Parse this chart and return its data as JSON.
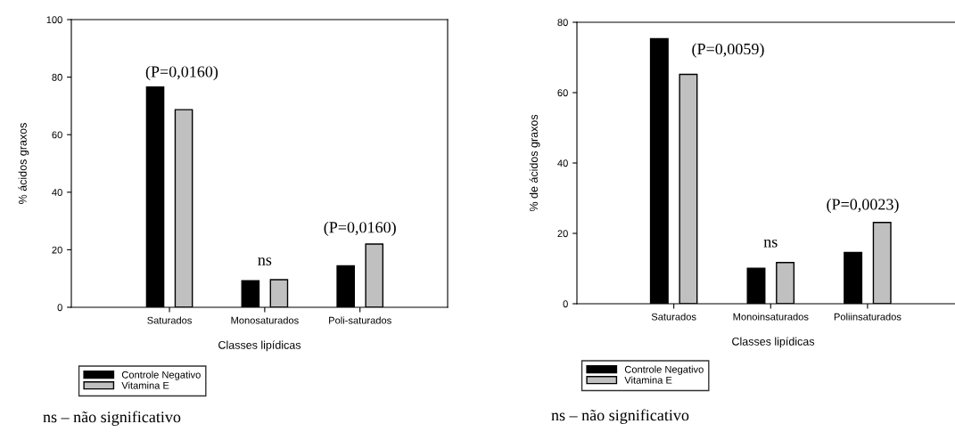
{
  "chart_data": [
    {
      "type": "bar",
      "xlabel": "Classes lipídicas",
      "ylabel": "% ácidos graxos",
      "categories": [
        "Saturados",
        "Monosaturados",
        "Poli-saturados"
      ],
      "series": [
        {
          "name": "Controle Negativo",
          "color": "#000000",
          "values": [
            76.6,
            9.2,
            14.4
          ]
        },
        {
          "name": "Vitamina E",
          "color": "#c0c0c0",
          "values": [
            68.7,
            9.6,
            22.0
          ]
        }
      ],
      "ylim": [
        0,
        100
      ],
      "yticks": [
        0,
        20,
        40,
        60,
        80,
        100
      ],
      "legend": "bottom left",
      "grid": false,
      "annotations": [
        "(P=0,0160)",
        "ns",
        "(P=0,0160)",
        "ns – não significativo"
      ]
    },
    {
      "type": "bar",
      "xlabel": "Classes lipídicas",
      "ylabel": "% de ácidos graxos",
      "categories": [
        "Saturados",
        "Monoinsaturados",
        "Poliinsaturados"
      ],
      "series": [
        {
          "name": "Controle Negativo",
          "color": "#000000",
          "values": [
            75.3,
            10.1,
            14.6
          ]
        },
        {
          "name": "Vitamina E",
          "color": "#c0c0c0",
          "values": [
            65.2,
            11.7,
            23.1
          ]
        }
      ],
      "ylim": [
        0,
        80
      ],
      "yticks": [
        0,
        20,
        40,
        60,
        80
      ],
      "legend": "bottom left",
      "grid": false,
      "annotations": [
        "(P=0,0059)",
        "ns",
        "(P=0,0023)",
        "ns – não significativo"
      ]
    }
  ]
}
